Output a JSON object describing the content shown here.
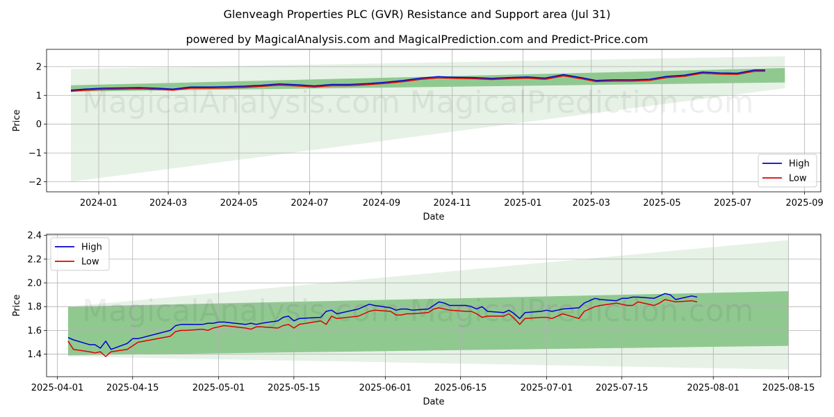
{
  "title": "Glenveagh Properties PLC (GVR) Resistance and Support area (Jul 31)",
  "subtitle": "powered by MagicalAnalysis.com and MagicalPrediction.com and Predict-Price.com",
  "watermarks": [
    "MagicalAnalysis.com",
    "MagicalPrediction.com"
  ],
  "colors": {
    "high": "#0000cc",
    "low": "#dd0000",
    "band_outer": "#e6f2e6",
    "band_inner": "#90c990",
    "grid": "#b0b0b0"
  },
  "chart_data": [
    {
      "type": "line",
      "xlabel": "Date",
      "ylabel": "Price",
      "xlim": [
        "2023-11-17",
        "2025-09-15"
      ],
      "ylim": [
        -2.35,
        2.6
      ],
      "x_ticks": [
        "2024-01",
        "2024-03",
        "2024-05",
        "2024-07",
        "2024-09",
        "2024-11",
        "2025-01",
        "2025-03",
        "2025-05",
        "2025-07",
        "2025-09"
      ],
      "y_ticks": [
        -2,
        -1,
        0,
        1,
        2
      ],
      "grid": true,
      "legend": "lower right",
      "bands": {
        "x": [
          "2023-12-08",
          "2025-08-15"
        ],
        "outer_upper": [
          1.92,
          2.36
        ],
        "outer_lower": [
          -2.0,
          1.25
        ],
        "inner_upper": [
          1.35,
          1.95
        ],
        "inner_lower": [
          1.13,
          1.45
        ]
      },
      "series": [
        {
          "name": "High",
          "x": [
            "2023-12-08",
            "2023-12-20",
            "2024-01-05",
            "2024-01-20",
            "2024-02-05",
            "2024-02-20",
            "2024-03-05",
            "2024-03-20",
            "2024-04-05",
            "2024-04-20",
            "2024-05-05",
            "2024-05-20",
            "2024-06-05",
            "2024-06-20",
            "2024-07-05",
            "2024-07-20",
            "2024-08-05",
            "2024-08-20",
            "2024-09-05",
            "2024-09-20",
            "2024-10-05",
            "2024-10-20",
            "2024-11-05",
            "2024-11-20",
            "2024-12-05",
            "2024-12-20",
            "2025-01-05",
            "2025-01-20",
            "2025-02-05",
            "2025-02-20",
            "2025-03-05",
            "2025-03-20",
            "2025-04-05",
            "2025-04-20",
            "2025-05-05",
            "2025-05-20",
            "2025-06-05",
            "2025-06-20",
            "2025-07-05",
            "2025-07-20",
            "2025-07-29"
          ],
          "values": [
            1.18,
            1.22,
            1.25,
            1.26,
            1.27,
            1.25,
            1.22,
            1.29,
            1.29,
            1.3,
            1.32,
            1.35,
            1.4,
            1.37,
            1.33,
            1.38,
            1.38,
            1.41,
            1.46,
            1.52,
            1.6,
            1.65,
            1.63,
            1.62,
            1.59,
            1.62,
            1.64,
            1.6,
            1.72,
            1.62,
            1.52,
            1.54,
            1.54,
            1.56,
            1.66,
            1.7,
            1.81,
            1.78,
            1.77,
            1.88,
            1.88
          ]
        },
        {
          "name": "Low",
          "x": [
            "2023-12-08",
            "2023-12-20",
            "2024-01-05",
            "2024-01-20",
            "2024-02-05",
            "2024-02-20",
            "2024-03-05",
            "2024-03-20",
            "2024-04-05",
            "2024-04-20",
            "2024-05-05",
            "2024-05-20",
            "2024-06-05",
            "2024-06-20",
            "2024-07-05",
            "2024-07-20",
            "2024-08-05",
            "2024-08-20",
            "2024-09-05",
            "2024-09-20",
            "2024-10-05",
            "2024-10-20",
            "2024-11-05",
            "2024-11-20",
            "2024-12-05",
            "2024-12-20",
            "2025-01-05",
            "2025-01-20",
            "2025-02-05",
            "2025-02-20",
            "2025-03-05",
            "2025-03-20",
            "2025-04-05",
            "2025-04-20",
            "2025-05-05",
            "2025-05-20",
            "2025-06-05",
            "2025-06-20",
            "2025-07-05",
            "2025-07-20",
            "2025-07-29"
          ],
          "values": [
            1.14,
            1.18,
            1.21,
            1.22,
            1.23,
            1.21,
            1.18,
            1.25,
            1.25,
            1.26,
            1.28,
            1.31,
            1.36,
            1.33,
            1.29,
            1.34,
            1.34,
            1.37,
            1.42,
            1.48,
            1.56,
            1.61,
            1.59,
            1.58,
            1.55,
            1.58,
            1.6,
            1.56,
            1.68,
            1.58,
            1.48,
            1.5,
            1.5,
            1.52,
            1.62,
            1.66,
            1.77,
            1.74,
            1.73,
            1.84,
            1.84
          ]
        }
      ]
    },
    {
      "type": "line",
      "xlabel": "Date",
      "ylabel": "Price",
      "xlim": [
        "2025-03-30",
        "2025-08-21"
      ],
      "ylim": [
        1.21,
        2.41
      ],
      "x_ticks": [
        "2025-04-01",
        "2025-04-15",
        "2025-05-01",
        "2025-05-15",
        "2025-06-01",
        "2025-06-15",
        "2025-07-01",
        "2025-07-15",
        "2025-08-01",
        "2025-08-15"
      ],
      "y_ticks": [
        1.4,
        1.6,
        1.8,
        2.0,
        2.2,
        2.4
      ],
      "grid": true,
      "legend": "upper left",
      "bands": {
        "x": [
          "2025-04-03",
          "2025-08-15"
        ],
        "outer_upper": [
          1.8,
          2.36
        ],
        "outer_lower": [
          1.38,
          1.27
        ],
        "inner_upper": [
          1.8,
          1.93
        ],
        "inner_lower": [
          1.39,
          1.47
        ]
      },
      "series": [
        {
          "name": "High",
          "x": [
            "2025-04-03",
            "2025-04-04",
            "2025-04-07",
            "2025-04-08",
            "2025-04-09",
            "2025-04-10",
            "2025-04-11",
            "2025-04-14",
            "2025-04-15",
            "2025-04-16",
            "2025-04-22",
            "2025-04-23",
            "2025-04-24",
            "2025-04-25",
            "2025-04-28",
            "2025-04-29",
            "2025-04-30",
            "2025-05-01",
            "2025-05-02",
            "2025-05-06",
            "2025-05-07",
            "2025-05-08",
            "2025-05-09",
            "2025-05-12",
            "2025-05-13",
            "2025-05-14",
            "2025-05-15",
            "2025-05-16",
            "2025-05-20",
            "2025-05-21",
            "2025-05-22",
            "2025-05-23",
            "2025-05-27",
            "2025-05-28",
            "2025-05-29",
            "2025-05-30",
            "2025-06-02",
            "2025-06-03",
            "2025-06-04",
            "2025-06-05",
            "2025-06-06",
            "2025-06-09",
            "2025-06-10",
            "2025-06-11",
            "2025-06-12",
            "2025-06-13",
            "2025-06-16",
            "2025-06-17",
            "2025-06-18",
            "2025-06-19",
            "2025-06-20",
            "2025-06-23",
            "2025-06-24",
            "2025-06-25",
            "2025-06-26",
            "2025-06-27",
            "2025-06-30",
            "2025-07-01",
            "2025-07-02",
            "2025-07-03",
            "2025-07-04",
            "2025-07-07",
            "2025-07-08",
            "2025-07-09",
            "2025-07-10",
            "2025-07-11",
            "2025-07-14",
            "2025-07-15",
            "2025-07-16",
            "2025-07-17",
            "2025-07-18",
            "2025-07-21",
            "2025-07-22",
            "2025-07-23",
            "2025-07-24",
            "2025-07-25",
            "2025-07-28",
            "2025-07-29"
          ],
          "values": [
            1.54,
            1.52,
            1.48,
            1.48,
            1.45,
            1.51,
            1.44,
            1.49,
            1.53,
            1.53,
            1.6,
            1.64,
            1.65,
            1.65,
            1.65,
            1.66,
            1.66,
            1.67,
            1.67,
            1.65,
            1.66,
            1.65,
            1.66,
            1.68,
            1.71,
            1.72,
            1.68,
            1.7,
            1.71,
            1.76,
            1.77,
            1.74,
            1.78,
            1.8,
            1.82,
            1.81,
            1.79,
            1.77,
            1.78,
            1.78,
            1.77,
            1.78,
            1.81,
            1.84,
            1.83,
            1.81,
            1.81,
            1.8,
            1.78,
            1.8,
            1.76,
            1.75,
            1.77,
            1.74,
            1.7,
            1.75,
            1.76,
            1.77,
            1.76,
            1.77,
            1.78,
            1.79,
            1.83,
            1.85,
            1.87,
            1.86,
            1.85,
            1.87,
            1.87,
            1.88,
            1.88,
            1.87,
            1.89,
            1.91,
            1.9,
            1.86,
            1.89,
            1.88
          ]
        },
        {
          "name": "Low",
          "x": [
            "2025-04-03",
            "2025-04-04",
            "2025-04-07",
            "2025-04-08",
            "2025-04-09",
            "2025-04-10",
            "2025-04-11",
            "2025-04-14",
            "2025-04-15",
            "2025-04-16",
            "2025-04-22",
            "2025-04-23",
            "2025-04-24",
            "2025-04-25",
            "2025-04-28",
            "2025-04-29",
            "2025-04-30",
            "2025-05-01",
            "2025-05-02",
            "2025-05-06",
            "2025-05-07",
            "2025-05-08",
            "2025-05-09",
            "2025-05-12",
            "2025-05-13",
            "2025-05-14",
            "2025-05-15",
            "2025-05-16",
            "2025-05-20",
            "2025-05-21",
            "2025-05-22",
            "2025-05-23",
            "2025-05-27",
            "2025-05-28",
            "2025-05-29",
            "2025-05-30",
            "2025-06-02",
            "2025-06-03",
            "2025-06-04",
            "2025-06-05",
            "2025-06-06",
            "2025-06-09",
            "2025-06-10",
            "2025-06-11",
            "2025-06-12",
            "2025-06-13",
            "2025-06-16",
            "2025-06-17",
            "2025-06-18",
            "2025-06-19",
            "2025-06-20",
            "2025-06-23",
            "2025-06-24",
            "2025-06-25",
            "2025-06-26",
            "2025-06-27",
            "2025-06-30",
            "2025-07-01",
            "2025-07-02",
            "2025-07-03",
            "2025-07-04",
            "2025-07-07",
            "2025-07-08",
            "2025-07-09",
            "2025-07-10",
            "2025-07-11",
            "2025-07-14",
            "2025-07-15",
            "2025-07-16",
            "2025-07-17",
            "2025-07-18",
            "2025-07-21",
            "2025-07-22",
            "2025-07-23",
            "2025-07-24",
            "2025-07-25",
            "2025-07-28",
            "2025-07-29"
          ],
          "values": [
            1.51,
            1.44,
            1.42,
            1.41,
            1.42,
            1.38,
            1.42,
            1.44,
            1.47,
            1.5,
            1.55,
            1.59,
            1.6,
            1.6,
            1.61,
            1.6,
            1.62,
            1.63,
            1.64,
            1.62,
            1.61,
            1.63,
            1.63,
            1.62,
            1.64,
            1.65,
            1.62,
            1.65,
            1.68,
            1.65,
            1.72,
            1.7,
            1.72,
            1.74,
            1.76,
            1.77,
            1.76,
            1.73,
            1.73,
            1.74,
            1.74,
            1.75,
            1.78,
            1.79,
            1.78,
            1.77,
            1.76,
            1.76,
            1.74,
            1.71,
            1.72,
            1.72,
            1.74,
            1.7,
            1.65,
            1.7,
            1.71,
            1.71,
            1.7,
            1.72,
            1.74,
            1.7,
            1.76,
            1.78,
            1.8,
            1.81,
            1.83,
            1.82,
            1.81,
            1.81,
            1.84,
            1.81,
            1.83,
            1.86,
            1.85,
            1.84,
            1.85,
            1.84
          ]
        }
      ]
    }
  ]
}
